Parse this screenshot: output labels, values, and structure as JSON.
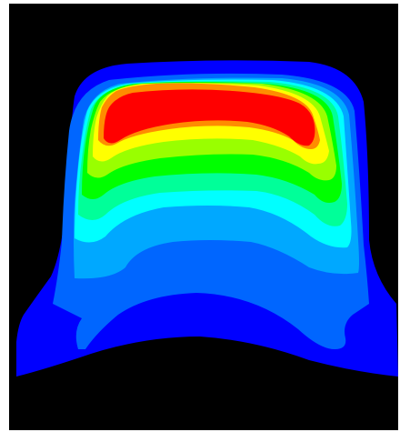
{
  "chart_data": {
    "type": "heatmap",
    "title": "",
    "xlabel": "",
    "ylabel": "",
    "colorbar": "none",
    "background_color": "#000000",
    "contour_levels": [
      {
        "level": 1,
        "color": "#0000ff"
      },
      {
        "level": 2,
        "color": "#0066ff"
      },
      {
        "level": 3,
        "color": "#00a8ff"
      },
      {
        "level": 4,
        "color": "#00ffff"
      },
      {
        "level": 5,
        "color": "#00ff99"
      },
      {
        "level": 6,
        "color": "#00ff00"
      },
      {
        "level": 7,
        "color": "#99ff00"
      },
      {
        "level": 8,
        "color": "#ffff00"
      },
      {
        "level": 9,
        "color": "#ff8c00"
      },
      {
        "level": 10,
        "color": "#ff0000"
      }
    ]
  }
}
